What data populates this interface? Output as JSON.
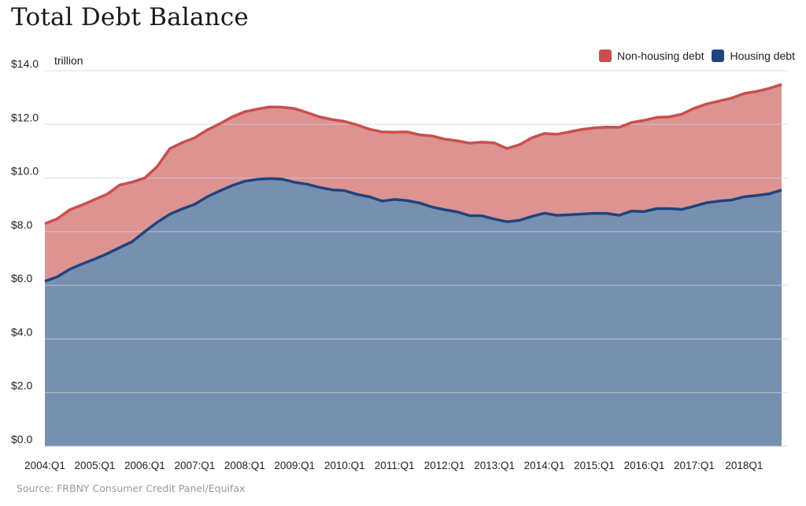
{
  "chart_data": {
    "type": "area",
    "stacked": true,
    "title": "Total Debt Balance",
    "unit_label": "trillion",
    "source": "Source: FRBNY Consumer Credit Panel/Equifax",
    "ylim": [
      0,
      14
    ],
    "yticks": [
      "$0.0",
      "$2.0",
      "$4.0",
      "$6.0",
      "$8.0",
      "$10.0",
      "$12.0",
      "$14.0"
    ],
    "ytick_values": [
      0,
      2,
      4,
      6,
      8,
      10,
      12,
      14
    ],
    "grid": true,
    "legend_position": "top-right",
    "xtick_labels": [
      "2004:Q1",
      "2005:Q1",
      "2006:Q1",
      "2007:Q1",
      "2008:Q1",
      "2009:Q1",
      "2010:Q1",
      "2011:Q1",
      "2012:Q1",
      "2013:Q1",
      "2014:Q1",
      "2015:Q1",
      "2016:Q1",
      "2017:Q1",
      "2018Q1"
    ],
    "x": [
      "2004:Q1",
      "2004:Q2",
      "2004:Q3",
      "2004:Q4",
      "2005:Q1",
      "2005:Q2",
      "2005:Q3",
      "2005:Q4",
      "2006:Q1",
      "2006:Q2",
      "2006:Q3",
      "2006:Q4",
      "2007:Q1",
      "2007:Q2",
      "2007:Q3",
      "2007:Q4",
      "2008:Q1",
      "2008:Q2",
      "2008:Q3",
      "2008:Q4",
      "2009:Q1",
      "2009:Q2",
      "2009:Q3",
      "2009:Q4",
      "2010:Q1",
      "2010:Q2",
      "2010:Q3",
      "2010:Q4",
      "2011:Q1",
      "2011:Q2",
      "2011:Q3",
      "2011:Q4",
      "2012:Q1",
      "2012:Q2",
      "2012:Q3",
      "2012:Q4",
      "2013:Q1",
      "2013:Q2",
      "2013:Q3",
      "2013:Q4",
      "2014:Q1",
      "2014:Q2",
      "2014:Q3",
      "2014:Q4",
      "2015:Q1",
      "2015:Q2",
      "2015:Q3",
      "2015:Q4",
      "2016:Q1",
      "2016:Q2",
      "2016:Q3",
      "2016:Q4",
      "2017:Q1",
      "2017:Q2",
      "2017:Q3",
      "2017:Q4",
      "2018:Q1",
      "2018:Q2",
      "2018:Q3",
      "2018:Q4"
    ],
    "series": [
      {
        "name": "Housing debt",
        "color": "#1f4580",
        "fill": "#7890b0",
        "values": [
          6.15,
          6.32,
          6.6,
          6.8,
          6.98,
          7.18,
          7.41,
          7.63,
          8.0,
          8.35,
          8.65,
          8.85,
          9.02,
          9.3,
          9.52,
          9.72,
          9.88,
          9.95,
          9.98,
          9.96,
          9.84,
          9.77,
          9.65,
          9.56,
          9.53,
          9.39,
          9.3,
          9.14,
          9.2,
          9.16,
          9.07,
          8.92,
          8.82,
          8.74,
          8.6,
          8.59,
          8.47,
          8.37,
          8.42,
          8.57,
          8.69,
          8.61,
          8.63,
          8.66,
          8.68,
          8.68,
          8.61,
          8.77,
          8.75,
          8.86,
          8.86,
          8.83,
          8.95,
          9.08,
          9.14,
          9.18,
          9.3,
          9.35,
          9.41,
          9.55
        ]
      },
      {
        "name": "Non-housing debt",
        "color": "#c84f4f",
        "fill": "#dc9391",
        "values": [
          2.15,
          2.16,
          2.22,
          2.2,
          2.22,
          2.22,
          2.33,
          2.22,
          2.0,
          2.08,
          2.44,
          2.47,
          2.48,
          2.49,
          2.5,
          2.56,
          2.59,
          2.62,
          2.67,
          2.68,
          2.75,
          2.67,
          2.63,
          2.62,
          2.58,
          2.59,
          2.52,
          2.58,
          2.51,
          2.56,
          2.54,
          2.65,
          2.63,
          2.65,
          2.7,
          2.75,
          2.84,
          2.73,
          2.82,
          2.93,
          2.97,
          3.02,
          3.09,
          3.15,
          3.19,
          3.22,
          3.28,
          3.3,
          3.4,
          3.4,
          3.42,
          3.55,
          3.65,
          3.68,
          3.73,
          3.8,
          3.85,
          3.88,
          3.93,
          3.94
        ]
      }
    ]
  }
}
